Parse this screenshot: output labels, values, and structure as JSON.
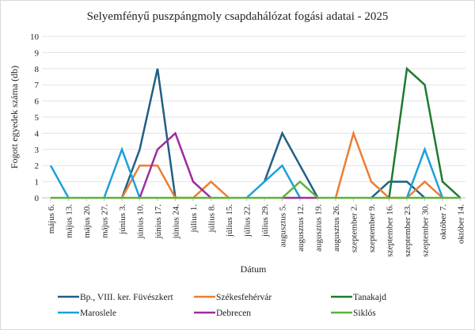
{
  "chart_data": {
    "type": "line",
    "title": "Selyemfényű puszpángmoly csapdahálózat fogási adatai - 2025",
    "xlabel": "Dátum",
    "ylabel": "Fogott egyedek száma (db)",
    "ylim": [
      0,
      10
    ],
    "yticks": [
      0,
      1,
      2,
      3,
      4,
      5,
      6,
      7,
      8,
      9,
      10
    ],
    "grid": true,
    "legend": "bottom",
    "categories": [
      "május 6.",
      "május 13.",
      "május 20.",
      "május 27.",
      "június 3.",
      "június 10.",
      "június 17.",
      "június 24.",
      "július 1.",
      "július 8.",
      "július 15.",
      "július 22.",
      "július 29.",
      "augusztus 5.",
      "augusztus 12.",
      "augusztus 19.",
      "augusztus 26.",
      "szeptember 2.",
      "szeptember 9.",
      "szeptember 16.",
      "szeptember 23.",
      "szeptember 30.",
      "október 7.",
      "október 14."
    ],
    "series": [
      {
        "name": "Bp., VIII. ker. Füvészkert",
        "color": "#1f5f86",
        "values": [
          null,
          null,
          null,
          null,
          0,
          3,
          8,
          0,
          null,
          null,
          null,
          null,
          1,
          4,
          2,
          0,
          null,
          null,
          0,
          1,
          1,
          0,
          null,
          null
        ]
      },
      {
        "name": "Székesfehérvár",
        "color": "#ed7d31",
        "values": [
          null,
          null,
          null,
          null,
          0,
          2,
          2,
          0,
          0,
          1,
          0,
          null,
          null,
          null,
          null,
          null,
          0,
          4,
          1,
          0,
          0,
          1,
          0,
          null
        ]
      },
      {
        "name": "Tanakajd",
        "color": "#1e7a2e",
        "values": [
          null,
          null,
          null,
          null,
          null,
          null,
          null,
          null,
          null,
          null,
          null,
          null,
          null,
          null,
          null,
          null,
          null,
          null,
          null,
          0,
          8,
          7,
          1,
          0
        ]
      },
      {
        "name": "Maroslele",
        "color": "#1ba1d8",
        "values": [
          2,
          0,
          null,
          0,
          3,
          0,
          null,
          null,
          null,
          null,
          null,
          0,
          1,
          2,
          0,
          null,
          null,
          null,
          null,
          null,
          0,
          3,
          0,
          null
        ]
      },
      {
        "name": "Debrecen",
        "color": "#9c2c9e",
        "values": [
          null,
          null,
          null,
          null,
          null,
          0,
          3,
          4,
          1,
          0,
          null,
          null,
          null,
          0,
          0,
          0,
          null,
          null,
          null,
          null,
          null,
          null,
          null,
          null
        ]
      },
      {
        "name": "Siklós",
        "color": "#5db338",
        "values": [
          0,
          0,
          0,
          0,
          0,
          0,
          0,
          0,
          0,
          0,
          0,
          0,
          0,
          0,
          1,
          0,
          0,
          0,
          0,
          0,
          0,
          0,
          0,
          0
        ]
      }
    ]
  }
}
